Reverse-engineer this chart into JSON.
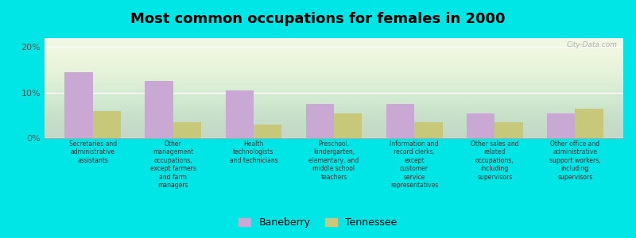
{
  "title": "Most common occupations for females in 2000",
  "categories": [
    "Secretaries and\nadministrative\nassistants",
    "Other\nmanagement\noccupations,\nexcept farmers\nand farm\nmanagers",
    "Health\ntechnologists\nand technicians",
    "Preschool,\nkindergarten,\nelementary, and\nmiddle school\nteachers",
    "Information and\nrecord clerks,\nexcept\ncustomer\nservice\nrepresentatives",
    "Other sales and\nrelated\noccupations,\nincluding\nsupervisors",
    "Other office and\nadministrative\nsupport workers,\nincluding\nsupervisors"
  ],
  "baneberry": [
    14.5,
    12.5,
    10.5,
    7.5,
    7.5,
    5.5,
    5.5
  ],
  "tennessee": [
    6.0,
    3.5,
    3.0,
    5.5,
    3.5,
    3.5,
    6.5
  ],
  "bar_color_baneberry": "#c9a8d4",
  "bar_color_tennessee": "#c8c87a",
  "background_color": "#00e5e5",
  "ylim": [
    0,
    22
  ],
  "yticks": [
    0,
    10,
    20
  ],
  "ytick_labels": [
    "0%",
    "10%",
    "20%"
  ],
  "bar_width": 0.35,
  "legend_baneberry": "Baneberry",
  "legend_tennessee": "Tennessee",
  "watermark": "City-Data.com"
}
